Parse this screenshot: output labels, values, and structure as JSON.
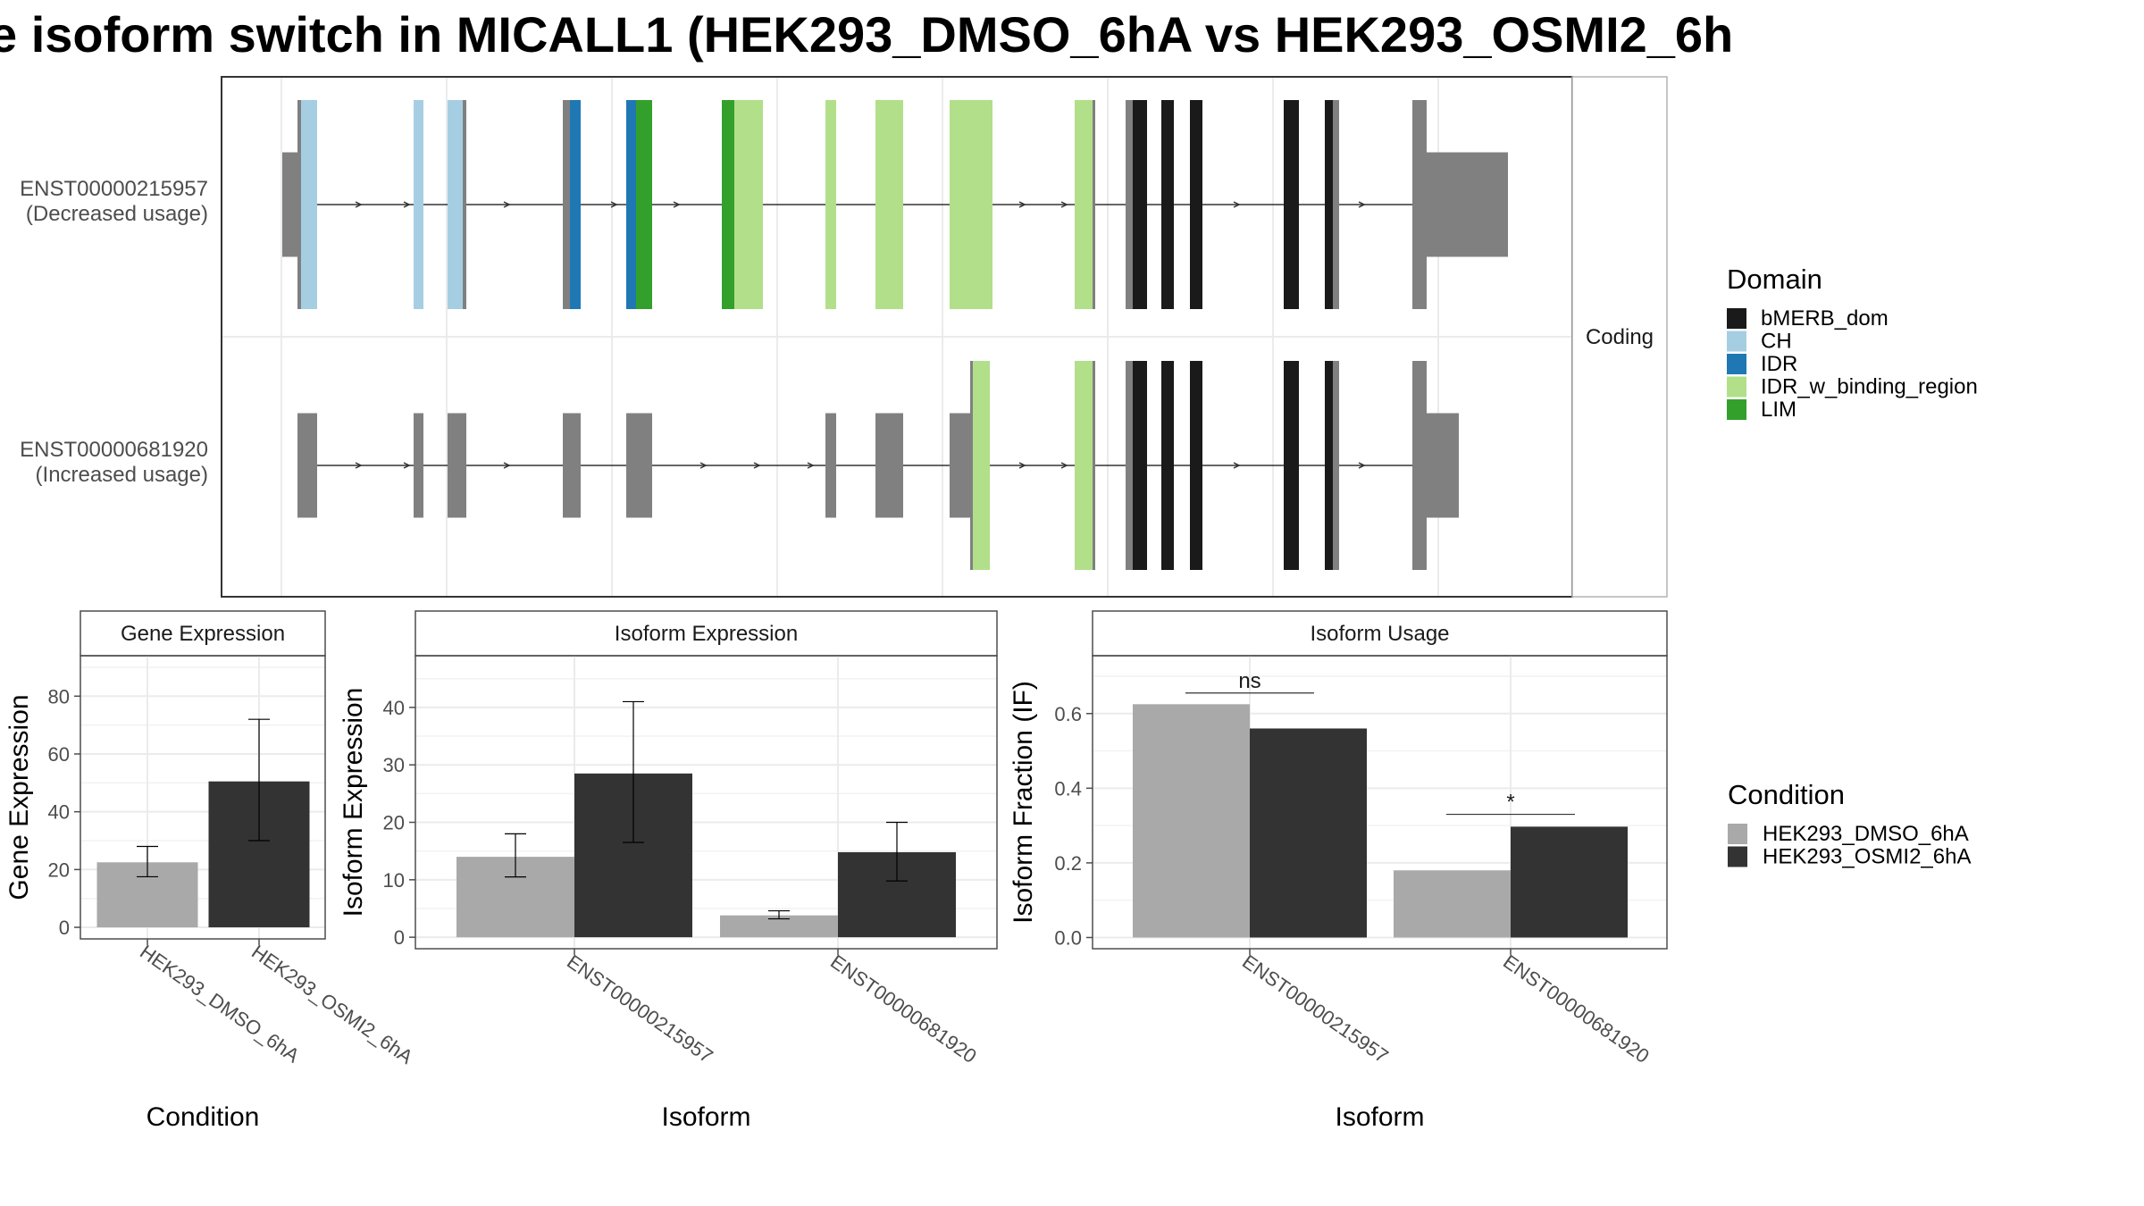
{
  "title": "e isoform switch in MICALL1 (HEK293_DMSO_6hA vs HEK293_OSMI2_6h",
  "chart_data": [
    {
      "type": "gene_structure",
      "strip_label": "Coding",
      "transcripts": [
        {
          "id": "ENST00000215957",
          "label": "ENST00000215957",
          "sublabel": "(Decreased usage)"
        },
        {
          "id": "ENST00000681920",
          "label": "ENST00000681920",
          "sublabel": "(Increased usage)"
        }
      ],
      "legend": {
        "title": "Domain",
        "items": [
          {
            "name": "bMERB_dom",
            "color": "#1a1a1a"
          },
          {
            "name": "CH",
            "color": "#a6cee3"
          },
          {
            "name": "IDR",
            "color": "#1f78b4"
          },
          {
            "name": "IDR_w_binding_region",
            "color": "#b2df8a"
          },
          {
            "name": "LIM",
            "color": "#33a02c"
          }
        ]
      },
      "noncoding_color": "#808080"
    },
    {
      "type": "bar",
      "panel": "Gene Expression",
      "xlabel": "Condition",
      "ylabel": "Gene Expression",
      "categories": [
        "HEK293_DMSO_6hA",
        "HEK293_OSMI2_6hA"
      ],
      "values": [
        22.5,
        50.5
      ],
      "error_low": [
        17.5,
        30
      ],
      "error_high": [
        28,
        72
      ],
      "colors": [
        "#a9a9a9",
        "#333333"
      ],
      "ylim": [
        -4,
        94
      ],
      "yticks": [
        0,
        20,
        40,
        60,
        80
      ]
    },
    {
      "type": "bar",
      "panel": "Isoform Expression",
      "xlabel": "Isoform",
      "ylabel": "Isoform Expression",
      "categories": [
        "ENST00000215957",
        "ENST00000681920"
      ],
      "series": [
        {
          "name": "HEK293_DMSO_6hA",
          "color": "#a9a9a9",
          "values": [
            14,
            3.8
          ],
          "error_low": [
            10.5,
            3.2
          ],
          "error_high": [
            18,
            4.6
          ]
        },
        {
          "name": "HEK293_OSMI2_6hA",
          "color": "#333333",
          "values": [
            28.5,
            14.8
          ],
          "error_low": [
            16.5,
            9.8
          ],
          "error_high": [
            41,
            20
          ]
        }
      ],
      "ylim": [
        -2,
        49
      ],
      "yticks": [
        0,
        10,
        20,
        30,
        40
      ]
    },
    {
      "type": "bar",
      "panel": "Isoform Usage",
      "xlabel": "Isoform",
      "ylabel": "Isoform Fraction (IF)",
      "categories": [
        "ENST00000215957",
        "ENST00000681920"
      ],
      "series": [
        {
          "name": "HEK293_DMSO_6hA",
          "color": "#a9a9a9",
          "values": [
            0.625,
            0.18
          ]
        },
        {
          "name": "HEK293_OSMI2_6hA",
          "color": "#333333",
          "values": [
            0.56,
            0.297
          ]
        }
      ],
      "significance": [
        {
          "label": "ns",
          "y": 0.655
        },
        {
          "label": "*",
          "y": 0.33
        }
      ],
      "ylim": [
        -0.03,
        0.755
      ],
      "yticks": [
        0.0,
        0.2,
        0.4,
        0.6
      ],
      "ytick_labels": [
        "0.0",
        "0.2",
        "0.4",
        "0.6"
      ]
    }
  ],
  "condition_legend": {
    "title": "Condition",
    "items": [
      {
        "name": "HEK293_DMSO_6hA",
        "color": "#a9a9a9"
      },
      {
        "name": "HEK293_OSMI2_6hA",
        "color": "#333333"
      }
    ]
  }
}
